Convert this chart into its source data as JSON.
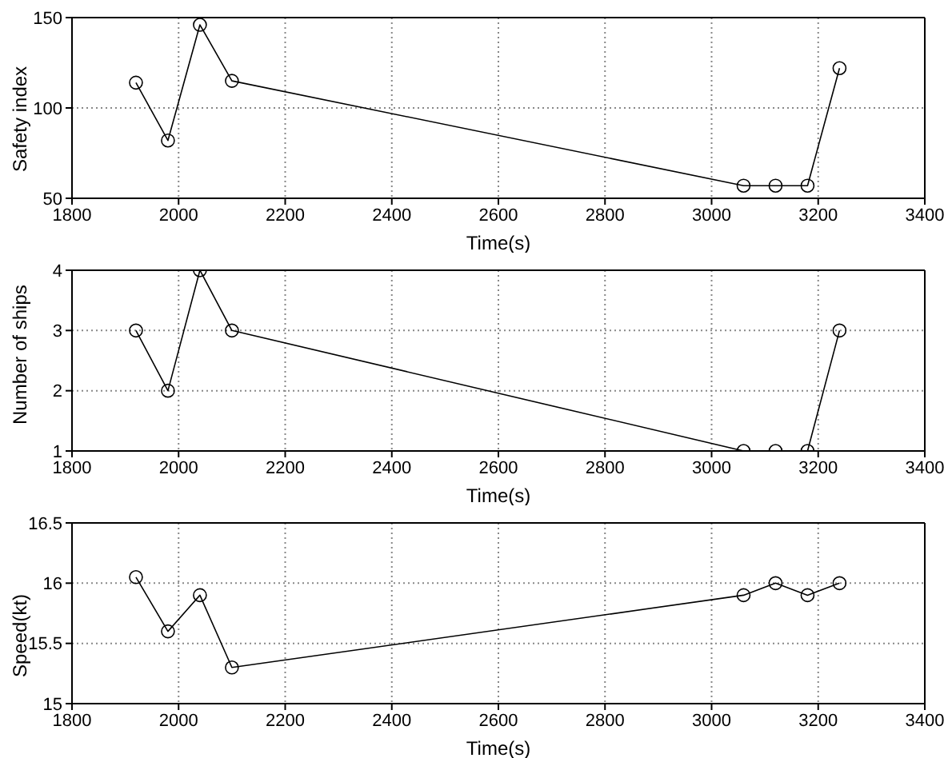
{
  "chart_data": [
    {
      "type": "line",
      "x": [
        1920,
        1980,
        2040,
        2100,
        3060,
        3120,
        3180,
        3240
      ],
      "xlabel": "Time(s)",
      "ylabel": "Safety index",
      "xlim": [
        1800,
        3400
      ],
      "xticks": [
        1800,
        2000,
        2200,
        2400,
        2600,
        2800,
        3000,
        3200,
        3400
      ],
      "ylim": [
        50,
        150
      ],
      "yticks": [
        50,
        100,
        150
      ],
      "grid": true,
      "marker": "circle",
      "line_style": "solid",
      "legend": false,
      "series": [
        {
          "color": "#000000",
          "values": [
            114,
            82,
            146,
            115,
            57,
            57,
            57,
            122
          ]
        }
      ]
    },
    {
      "type": "line",
      "x": [
        1920,
        1980,
        2040,
        2100,
        3060,
        3120,
        3180,
        3240
      ],
      "xlabel": "Time(s)",
      "ylabel": "Number of ships",
      "xlim": [
        1800,
        3400
      ],
      "xticks": [
        1800,
        2000,
        2200,
        2400,
        2600,
        2800,
        3000,
        3200,
        3400
      ],
      "ylim": [
        1,
        4
      ],
      "yticks": [
        1,
        2,
        3,
        4
      ],
      "grid": true,
      "marker": "circle",
      "line_style": "solid",
      "legend": false,
      "series": [
        {
          "color": "#000000",
          "values": [
            3,
            2,
            4,
            3,
            1,
            1,
            1,
            3
          ]
        }
      ]
    },
    {
      "type": "line",
      "x": [
        1920,
        1980,
        2040,
        2100,
        3060,
        3120,
        3180,
        3240
      ],
      "xlabel": "Time(s)",
      "ylabel": "Speed(kt)",
      "xlim": [
        1800,
        3400
      ],
      "xticks": [
        1800,
        2000,
        2200,
        2400,
        2600,
        2800,
        3000,
        3200,
        3400
      ],
      "ylim": [
        15,
        16.5
      ],
      "yticks": [
        15,
        15.5,
        16,
        16.5
      ],
      "grid": true,
      "marker": "circle",
      "line_style": "solid",
      "legend": false,
      "series": [
        {
          "color": "#000000",
          "values": [
            16.05,
            15.6,
            15.9,
            15.3,
            15.9,
            16,
            15.9,
            16
          ]
        }
      ]
    }
  ]
}
